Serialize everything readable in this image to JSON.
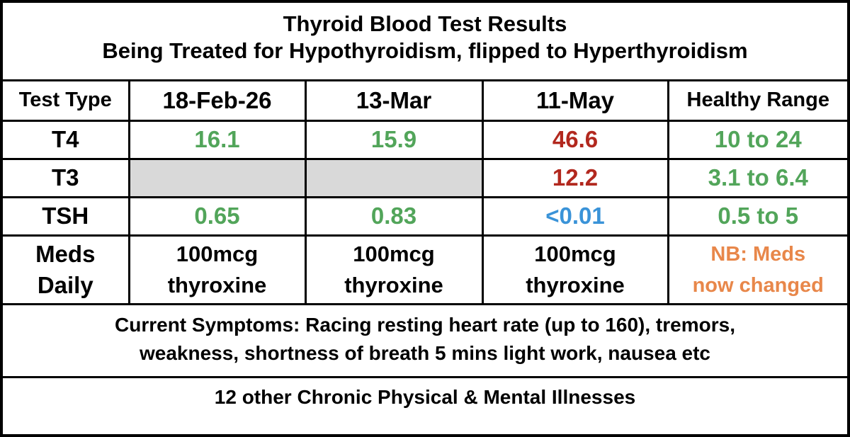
{
  "title": [
    "Thyroid Blood Test Results",
    "Being Treated for Hypothyroidism, flipped to Hyperthyroidism"
  ],
  "table": {
    "header": [
      "Test Type",
      "18-Feb-26",
      "13-Mar",
      "11-May",
      "Healthy Range"
    ],
    "rows": [
      [
        "T4",
        16.1,
        15.9,
        46.6,
        "10 to 24"
      ],
      [
        "T3",
        null,
        null,
        12.2,
        "3.1 to 6.4"
      ],
      [
        "TSH",
        0.65,
        0.83,
        "<0.01",
        "0.5 to 5"
      ],
      [
        [
          "Meds",
          "Daily"
        ],
        [
          "100mcg",
          "thyroxine"
        ],
        [
          "100mcg",
          "thyroxine"
        ],
        [
          "100mcg",
          "thyroxine"
        ],
        [
          "NB: Meds",
          "now changed"
        ]
      ]
    ]
  },
  "symptoms": [
    "Current Symptoms: Racing resting heart rate (up to 160), tremors,",
    "weakness, shortness of breath 5 mins light work, nausea etc"
  ],
  "footer": "12 other Chronic Physical & Mental Illnesses"
}
